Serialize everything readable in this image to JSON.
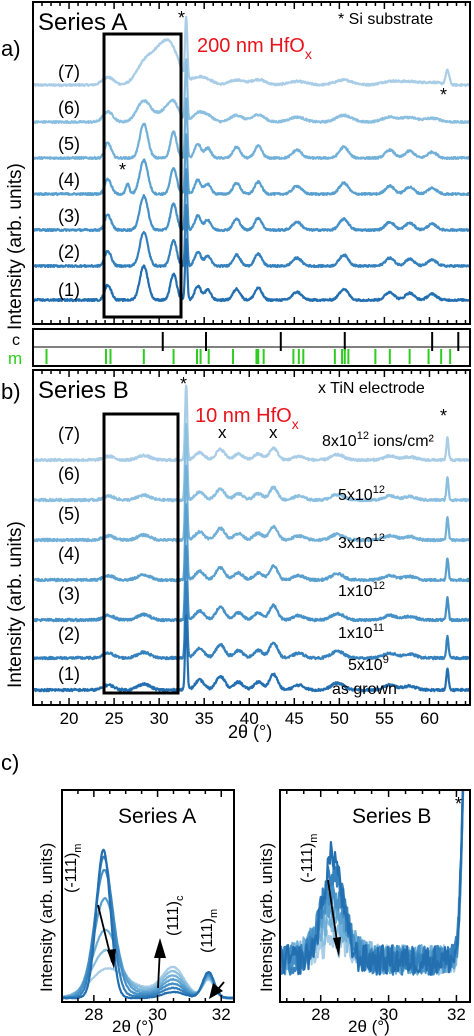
{
  "panel_a": {
    "tag": "a)",
    "series_title": "Series A",
    "thickness_label": "200 nm HfO",
    "thickness_sub": "x",
    "substrate_note": "* Si substrate",
    "ylabel": "Intensity (arb. units)",
    "traces": [
      "(7)",
      "(6)",
      "(5)",
      "(4)",
      "(3)",
      "(2)",
      "(1)"
    ],
    "star": "*"
  },
  "reference": {
    "label_c": "c",
    "label_m": "m",
    "c_positions": [
      30.4,
      35.2,
      43.5,
      50.6,
      60.3,
      63.2
    ],
    "m_positions": [
      17.5,
      24.1,
      24.6,
      28.3,
      31.6,
      34.2,
      34.6,
      35.5,
      38.2,
      40.8,
      41.0,
      41.6,
      44.9,
      45.5,
      46.0,
      49.5,
      50.3,
      50.6,
      51.0,
      54.0,
      55.6,
      57.8,
      59.9,
      61.3,
      62.3
    ]
  },
  "panel_b": {
    "tag": "b)",
    "series_title": "Series B",
    "thickness_label": "10 nm HfO",
    "thickness_sub": "x",
    "electrode_note": "x TiN electrode",
    "ylabel": "Intensity (arb. units)",
    "xlabel": "2θ (°)",
    "traces": [
      "(7)",
      "(6)",
      "(5)",
      "(4)",
      "(3)",
      "(2)",
      "(1)"
    ],
    "fluences": [
      {
        "base": "8x10",
        "exp": "12",
        "unit": " ions/cm²"
      },
      {
        "base": "5x10",
        "exp": "12",
        "unit": ""
      },
      {
        "base": "3x10",
        "exp": "12",
        "unit": ""
      },
      {
        "base": "1x10",
        "exp": "12",
        "unit": ""
      },
      {
        "base": "1x10",
        "exp": "11",
        "unit": ""
      },
      {
        "base": "5x10",
        "exp": "9",
        "unit": ""
      },
      {
        "base": "as grown",
        "exp": "",
        "unit": ""
      }
    ],
    "x_marks": [
      "x",
      "x"
    ],
    "star": "*"
  },
  "panel_c": {
    "tag": "c)",
    "left": {
      "title": "Series A",
      "ylabel": "Intensity (arb. units)",
      "xlabel": "2θ (°)",
      "peak_m": "(-111)",
      "peak_m_sub": "m",
      "peak_c": "(111)",
      "peak_c_sub": "c",
      "peak_m2": "(111)",
      "peak_m2_sub": "m"
    },
    "right": {
      "title": "Series B",
      "ylabel": "Intensity (arb. units)",
      "xlabel": "2θ (°)",
      "peak_m": "(-111)",
      "peak_m_sub": "m",
      "star": "*"
    }
  },
  "colors": {
    "trace_shades": [
      "#a9cde6",
      "#8bbfe0",
      "#72b0d8",
      "#5aa0cf",
      "#4590c6",
      "#3581bd",
      "#236fb0"
    ],
    "red_label": "#e8141c",
    "green_ref": "#2ecc1f",
    "black": "#000000"
  },
  "chart_data": [
    {
      "type": "line",
      "panel": "a",
      "title": "Series A",
      "ylabel": "Intensity (arb. units)",
      "xlim": [
        16,
        64.5
      ],
      "xticks": [
        20,
        25,
        30,
        35,
        40,
        45,
        50,
        55,
        60
      ],
      "series": [
        {
          "name": "(1)"
        },
        {
          "name": "(2)"
        },
        {
          "name": "(3)"
        },
        {
          "name": "(4)"
        },
        {
          "name": "(5)"
        },
        {
          "name": "(6)"
        },
        {
          "name": "(7)"
        }
      ],
      "peaks_deg": [
        24.2,
        24.6,
        28.3,
        31.6,
        33.0,
        34.3,
        35.4,
        38.6,
        41.0,
        45.3,
        50.5,
        55.6,
        57.8,
        60.3,
        62.0
      ]
    },
    {
      "type": "line",
      "panel": "b",
      "title": "Series B",
      "xlabel": "2θ (°)",
      "ylabel": "Intensity (arb. units)",
      "xlim": [
        16,
        64.5
      ],
      "xticks": [
        20,
        25,
        30,
        35,
        40,
        45,
        50,
        55,
        60
      ],
      "xtick_labels": [
        "20",
        "25",
        "30",
        "35",
        "40",
        "45",
        "50",
        "55",
        "60"
      ],
      "series": [
        {
          "name": "(1)",
          "fluence": "as grown"
        },
        {
          "name": "(2)",
          "fluence": "5x10^9"
        },
        {
          "name": "(3)",
          "fluence": "1x10^11"
        },
        {
          "name": "(4)",
          "fluence": "1x10^12"
        },
        {
          "name": "(5)",
          "fluence": "3x10^12"
        },
        {
          "name": "(6)",
          "fluence": "5x10^12"
        },
        {
          "name": "(7)",
          "fluence": "8x10^12 ions/cm²"
        }
      ],
      "peaks_deg": [
        24.4,
        28.3,
        33.0,
        34.5,
        36.8,
        38.8,
        41.0,
        42.7,
        45.5,
        49.8,
        55.6,
        57.8,
        62.0
      ]
    },
    {
      "type": "line",
      "panel": "c-left",
      "title": "Series A",
      "xlabel": "2θ (°)",
      "ylabel": "Intensity (arb. units)",
      "xlim": [
        27.0,
        32.4
      ],
      "xticks": [
        28,
        30,
        32
      ],
      "xtick_labels": [
        "28",
        "30",
        "32"
      ],
      "peaks_deg": [
        28.3,
        30.5,
        31.6
      ]
    },
    {
      "type": "line",
      "panel": "c-right",
      "title": "Series B",
      "xlabel": "2θ (°)",
      "ylabel": "Intensity (arb. units)",
      "xlim": [
        26.8,
        32.4
      ],
      "xticks": [
        28,
        30,
        32
      ],
      "xtick_labels": [
        "28",
        "30",
        "32"
      ],
      "peaks_deg": [
        28.3,
        32.0
      ]
    }
  ]
}
